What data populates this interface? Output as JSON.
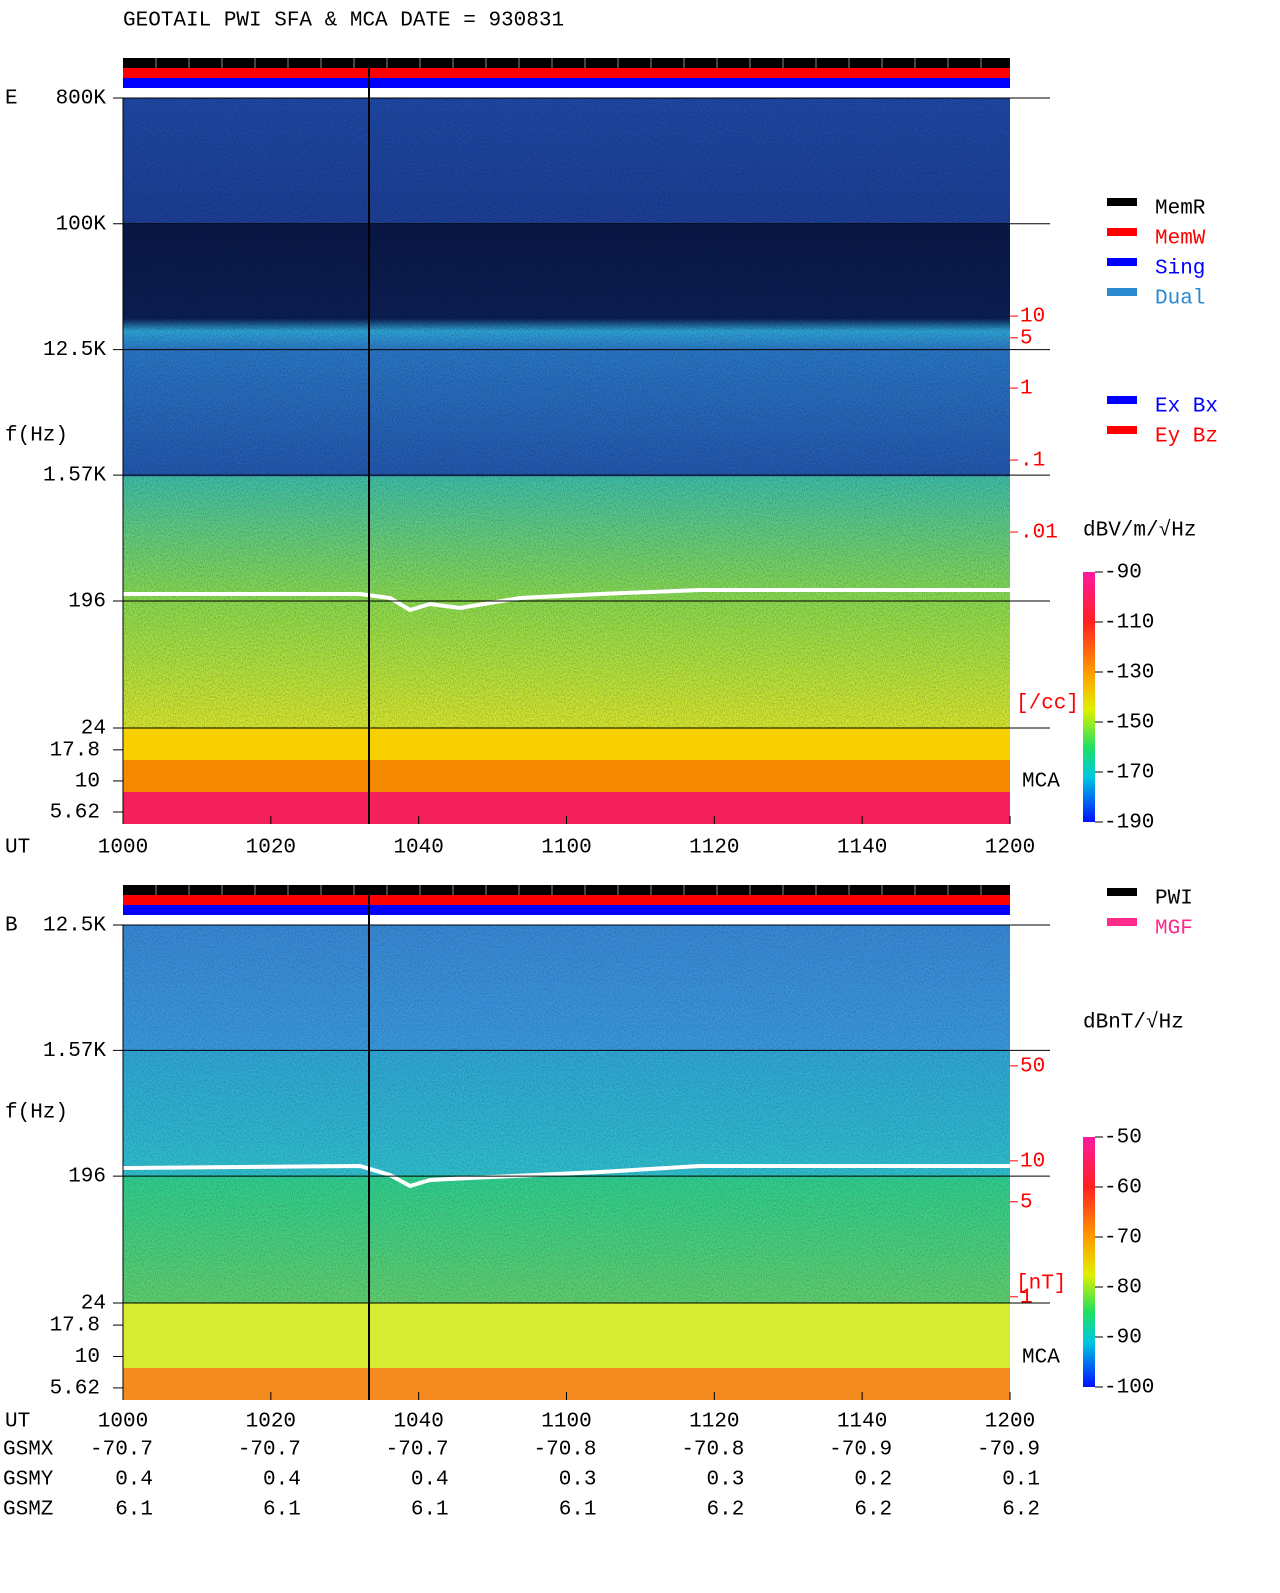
{
  "title": "GEOTAIL  PWI SFA & MCA   DATE = 930831",
  "chart_data": [
    {
      "type": "spectrogram",
      "panel": "E",
      "y_label": "f(Hz)",
      "x_label": "UT",
      "categories": [
        "1000",
        "1020",
        "1040",
        "1100",
        "1120",
        "1140",
        "1200"
      ],
      "ylim": [
        24,
        800000
      ],
      "yticks": [
        {
          "value": 800000,
          "label": "800K"
        },
        {
          "value": 100000,
          "label": "100K"
        },
        {
          "value": 12500,
          "label": "12.5K"
        },
        {
          "value": 1570,
          "label": "1.57K"
        },
        196,
        24
      ],
      "mca_label": "MCA",
      "mca_ylim": [
        4.5,
        26.7
      ],
      "mca_yticks": [
        17.8,
        10,
        5.62
      ],
      "y2_label": "[/cc]",
      "y2lim": [
        1.9e-05,
        10700
      ],
      "y2ticks": [
        10,
        5,
        1,
        {
          "value": 0.1,
          "label": ".1"
        },
        {
          "value": 0.01,
          "label": ".01"
        }
      ],
      "colorbar": {
        "label": "dBV/m/√Hz",
        "lim": [
          -190,
          -90
        ],
        "ticks": [
          -90,
          -110,
          -130,
          -150,
          -170,
          -190
        ]
      },
      "legend": [
        {
          "name": "MemR",
          "color": "#000000"
        },
        {
          "name": "MemW",
          "color": "#ff0000"
        },
        {
          "name": "Sing",
          "color": "#0000ff"
        },
        {
          "name": "Dual",
          "color": "#2a8ad0"
        }
      ],
      "legend2": [
        {
          "name": "Ex Bx",
          "color": "#0000ff"
        },
        {
          "name": "Ey Bz",
          "color": "#ff0000"
        }
      ]
    },
    {
      "type": "spectrogram",
      "panel": "B",
      "y_label": "f(Hz)",
      "x_label": "UT",
      "categories": [
        "1000",
        "1020",
        "1040",
        "1100",
        "1120",
        "1140",
        "1200"
      ],
      "ylim": [
        24,
        12500
      ],
      "yticks": [
        {
          "value": 12500,
          "label": "12.5K"
        },
        {
          "value": 1570,
          "label": "1.57K"
        },
        196,
        24
      ],
      "mca_label": "MCA",
      "mca_ylim": [
        4.5,
        26.7
      ],
      "mca_yticks": [
        17.8,
        10,
        5.62
      ],
      "y2_label": "[nT]",
      "y2lim": [
        0.9,
        543
      ],
      "y2ticks": [
        50,
        10,
        5,
        1
      ],
      "colorbar": {
        "label": "dBnT/√Hz",
        "lim": [
          -100,
          -50
        ],
        "ticks": [
          -50,
          -60,
          -70,
          -80,
          -90,
          -100
        ]
      },
      "legend": [
        {
          "name": "PWI",
          "color": "#000000"
        },
        {
          "name": "MGF",
          "color": "#ff2a8a"
        }
      ]
    }
  ],
  "orbit": {
    "rows": [
      {
        "label": "GSMX",
        "values": [
          -70.7,
          -70.7,
          -70.7,
          -70.8,
          -70.8,
          -70.9,
          -70.9
        ]
      },
      {
        "label": "GSMY",
        "values": [
          0.4,
          0.4,
          0.4,
          0.3,
          0.3,
          0.2,
          0.1
        ]
      },
      {
        "label": "GSMZ",
        "values": [
          6.1,
          6.1,
          6.1,
          6.1,
          6.2,
          6.2,
          6.2
        ]
      }
    ]
  }
}
